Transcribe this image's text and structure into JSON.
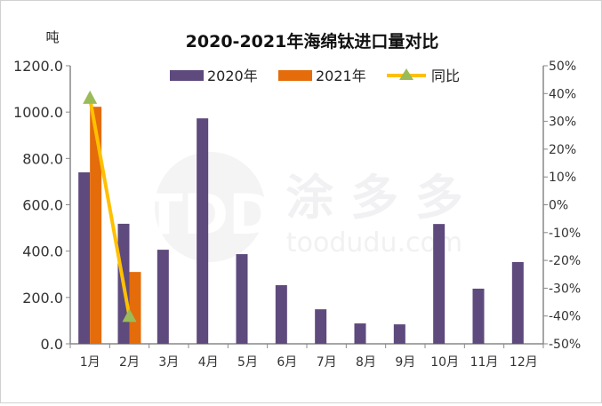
{
  "chart_data": {
    "type": "bar",
    "title": "2020-2021年海绵钛进口量对比",
    "ylabel": "吨",
    "categories": [
      "1月",
      "2月",
      "3月",
      "4月",
      "5月",
      "6月",
      "7月",
      "8月",
      "9月",
      "10月",
      "11月",
      "12月"
    ],
    "ylim": [
      0,
      1200
    ],
    "y_ticks": [
      "0.0",
      "200.0",
      "400.0",
      "600.0",
      "800.0",
      "1000.0",
      "1200.0"
    ],
    "y2lim": [
      -50,
      50
    ],
    "y2_ticks": [
      "-50%",
      "-40%",
      "-30%",
      "-20%",
      "-10%",
      "0%",
      "10%",
      "20%",
      "30%",
      "40%",
      "50%"
    ],
    "legend_position": "top",
    "grid": false,
    "series": [
      {
        "name": "2020年",
        "type": "bar",
        "color": "#5e4a7d",
        "values": [
          740,
          518,
          406,
          973,
          387,
          253,
          149,
          88,
          84,
          517,
          238,
          353
        ]
      },
      {
        "name": "2021年",
        "type": "bar",
        "color": "#e46c0a",
        "values": [
          1023,
          310,
          null,
          null,
          null,
          null,
          null,
          null,
          null,
          null,
          null,
          null
        ]
      },
      {
        "name": "同比",
        "type": "line",
        "axis": "right",
        "color": "#ffc000",
        "marker": "triangle",
        "marker_color": "#9bbb59",
        "values": [
          38.2,
          -40.2,
          null,
          null,
          null,
          null,
          null,
          null,
          null,
          null,
          null,
          null
        ]
      }
    ],
    "watermark": "涂多多 toodudu.com"
  }
}
